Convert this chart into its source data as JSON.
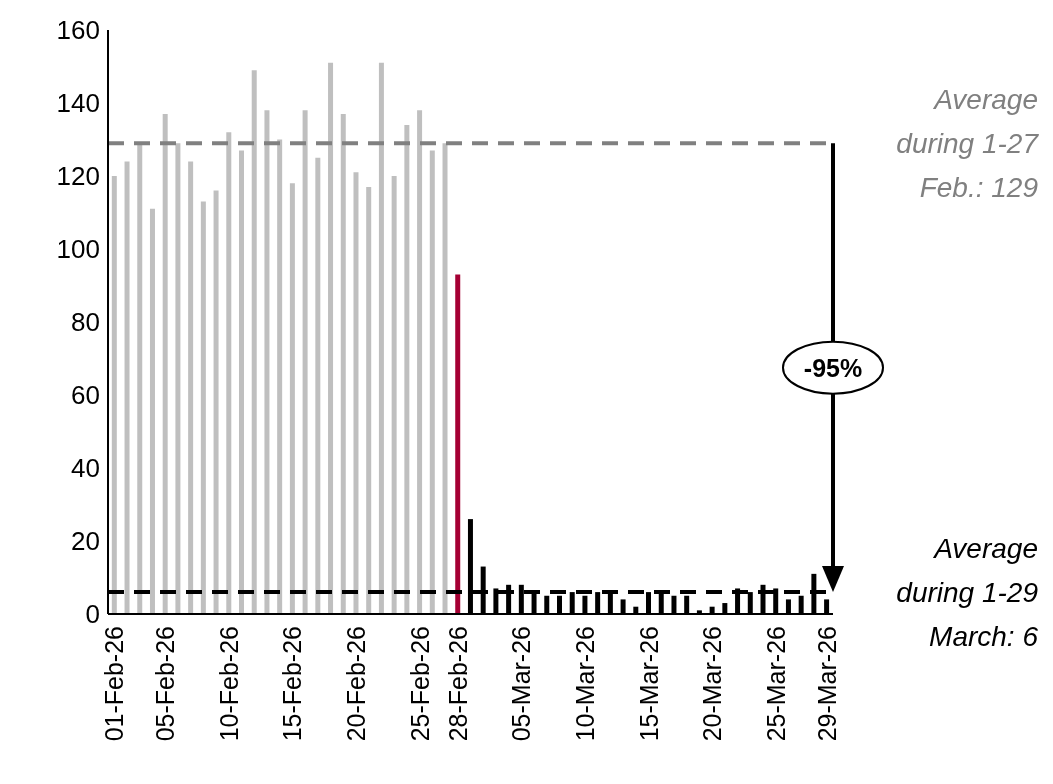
{
  "chart_data": {
    "type": "bar",
    "categories": [
      "01-Feb-26",
      null,
      null,
      null,
      "05-Feb-26",
      null,
      null,
      null,
      null,
      "10-Feb-26",
      null,
      null,
      null,
      null,
      "15-Feb-26",
      null,
      null,
      null,
      null,
      "20-Feb-26",
      null,
      null,
      null,
      null,
      "25-Feb-26",
      null,
      null,
      "28-Feb-26",
      null,
      null,
      null,
      null,
      "05-Mar-26",
      null,
      null,
      null,
      null,
      "10-Mar-26",
      null,
      null,
      null,
      null,
      "15-Mar-26",
      null,
      null,
      null,
      null,
      "20-Mar-26",
      null,
      null,
      null,
      null,
      "25-Mar-26",
      null,
      null,
      null,
      "29-Mar-26"
    ],
    "values": [
      120,
      124,
      129,
      111,
      137,
      129,
      124,
      113,
      116,
      132,
      127,
      149,
      138,
      130,
      118,
      138,
      125,
      151,
      137,
      121,
      117,
      151,
      120,
      134,
      138,
      127,
      129,
      93,
      26,
      13,
      7,
      8,
      8,
      6,
      5,
      5,
      6,
      5,
      6,
      6,
      4,
      2,
      6,
      6,
      5,
      5,
      1,
      2,
      3,
      7,
      6,
      8,
      7,
      4,
      5,
      11,
      4
    ],
    "colors": [
      "#bfbfbf",
      "#bfbfbf",
      "#bfbfbf",
      "#bfbfbf",
      "#bfbfbf",
      "#bfbfbf",
      "#bfbfbf",
      "#bfbfbf",
      "#bfbfbf",
      "#bfbfbf",
      "#bfbfbf",
      "#bfbfbf",
      "#bfbfbf",
      "#bfbfbf",
      "#bfbfbf",
      "#bfbfbf",
      "#bfbfbf",
      "#bfbfbf",
      "#bfbfbf",
      "#bfbfbf",
      "#bfbfbf",
      "#bfbfbf",
      "#bfbfbf",
      "#bfbfbf",
      "#bfbfbf",
      "#bfbfbf",
      "#bfbfbf",
      "#a50034",
      "#000000",
      "#000000",
      "#000000",
      "#000000",
      "#000000",
      "#000000",
      "#000000",
      "#000000",
      "#000000",
      "#000000",
      "#000000",
      "#000000",
      "#000000",
      "#000000",
      "#000000",
      "#000000",
      "#000000",
      "#000000",
      "#000000",
      "#000000",
      "#000000",
      "#000000",
      "#000000",
      "#000000",
      "#000000",
      "#000000",
      "#000000",
      "#000000",
      "#000000"
    ],
    "ylim": [
      0,
      160
    ],
    "yticks": [
      0,
      20,
      40,
      60,
      80,
      100,
      120,
      140,
      160
    ],
    "ref_lines": [
      {
        "axis": "y",
        "value": 129,
        "label": "Average during 1-27 Feb.: 129",
        "color": "#808080",
        "line_style": "dashed"
      },
      {
        "axis": "y",
        "value": 6,
        "label": "Average during 1-29 March: 6",
        "color": "#000000",
        "line_style": "dashed"
      }
    ],
    "annotations": [
      "-95%"
    ]
  }
}
